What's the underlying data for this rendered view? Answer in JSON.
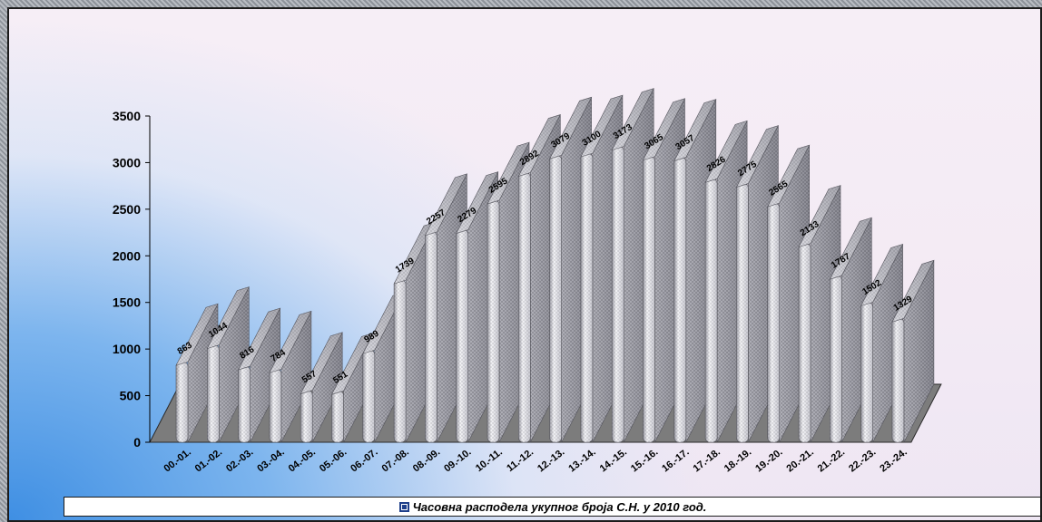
{
  "chart_data": {
    "type": "bar",
    "categories": [
      "00.-01.",
      "01.-02.",
      "02.-03.",
      "03.-04.",
      "04.-05.",
      "05.-06.",
      "06.-07.",
      "07.-08.",
      "08.-09.",
      "09.-10.",
      "10.-11.",
      "11.-12.",
      "12.-13.",
      "13.-14.",
      "14.-15.",
      "15.-16.",
      "16.-17.",
      "17.-18.",
      "18.-19.",
      "19.-20.",
      "20.-21.",
      "21.-22.",
      "22.-23.",
      "23.-24."
    ],
    "series": [
      {
        "name": "Часовна расподела укупног броја С.Н. у 2010 год.",
        "values": [
          863,
          1044,
          816,
          784,
          557,
          551,
          989,
          1739,
          2257,
          2279,
          2595,
          2892,
          3079,
          3100,
          3173,
          3065,
          3057,
          2826,
          2775,
          2565,
          2133,
          1787,
          1502,
          1329
        ]
      }
    ],
    "yticks": [
      0,
      500,
      1000,
      1500,
      2000,
      2500,
      3000,
      3500
    ],
    "ylim": [
      0,
      3500
    ],
    "title": "",
    "xlabel": "",
    "ylabel": "",
    "legend_position": "bottom",
    "bar_style": "3d-cylinder",
    "grid": false,
    "colors": {
      "bar_front": "#e8e8ec",
      "bar_side": "#9a9aa2",
      "bar_top": "#c4c4cc",
      "floor": "#7c7c7c",
      "legend_key": "#1e3f8a"
    }
  }
}
